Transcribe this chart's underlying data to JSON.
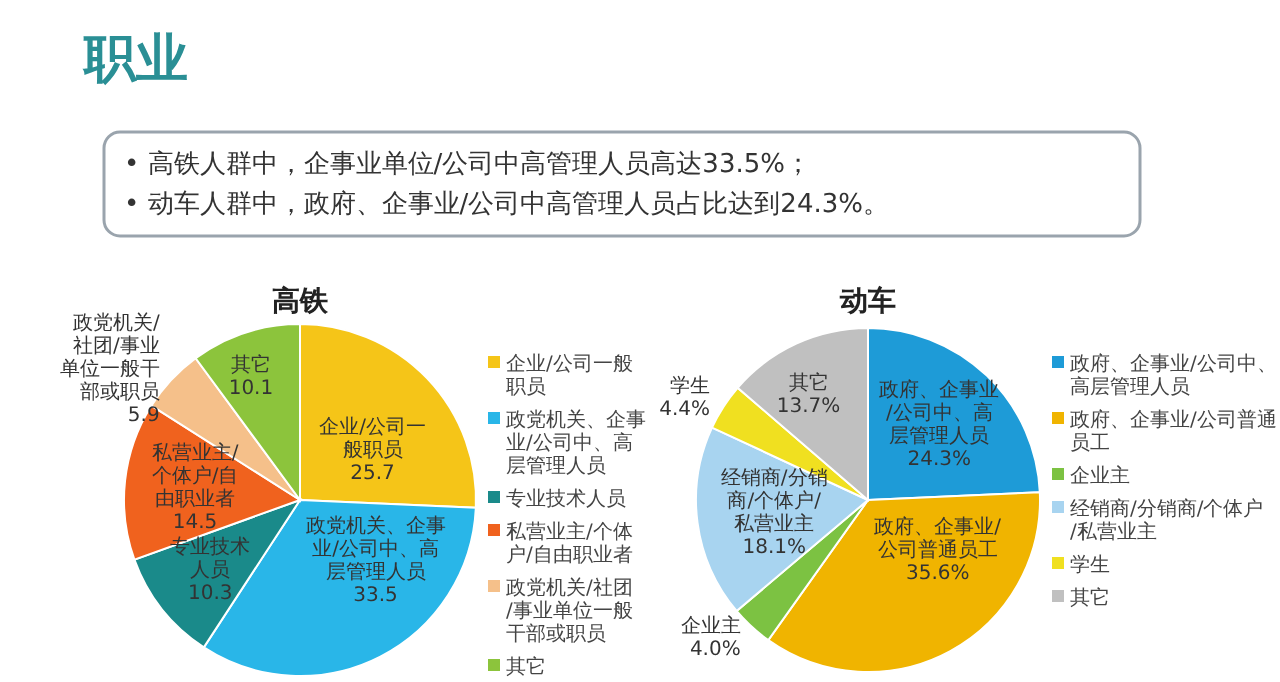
{
  "chart_data": [
    {
      "type": "other",
      "title": "职业",
      "annotations": [
        "• 高铁人群中，企事业单位/公司中高管理人员高达33.5%；",
        "• 动车人群中，政府、企事业/公司中高管理人员占比达到24.3%。"
      ]
    },
    {
      "type": "pie",
      "title": "高铁",
      "categories": [
        "企业/公司一般职员",
        "政党机关、企事业/公司中、高层管理人员",
        "专业技术人员",
        "私营业主/个体户/自由职业者",
        "政党机关/社团/事业单位一般干部或职员",
        "其它"
      ],
      "values": [
        25.7,
        33.5,
        10.3,
        14.5,
        5.9,
        10.1
      ],
      "value_labels": [
        "25.7",
        "33.5",
        "10.3",
        "14.5",
        "5.9",
        "10.1"
      ],
      "colors": [
        "#f5c518",
        "#29b6e8",
        "#1a8a8a",
        "#f0621e",
        "#f5c08a",
        "#8cc43c"
      ],
      "legend": "right"
    },
    {
      "type": "pie",
      "title": "动车",
      "categories": [
        "政府、企事业/公司中、高层管理人员",
        "政府、企事业/公司普通员工",
        "企业主",
        "经销商/分销商/个体户/私营业主",
        "学生",
        "其它"
      ],
      "values": [
        24.3,
        35.6,
        4.0,
        18.1,
        4.4,
        13.7
      ],
      "value_labels": [
        "24.3%",
        "35.6%",
        "4.0%",
        "18.1%",
        "4.4%",
        "13.7%"
      ],
      "colors": [
        "#1e9bd7",
        "#f0b400",
        "#7cc242",
        "#a8d4f0",
        "#f0e020",
        "#c0c0c0"
      ],
      "legend": "right"
    }
  ]
}
